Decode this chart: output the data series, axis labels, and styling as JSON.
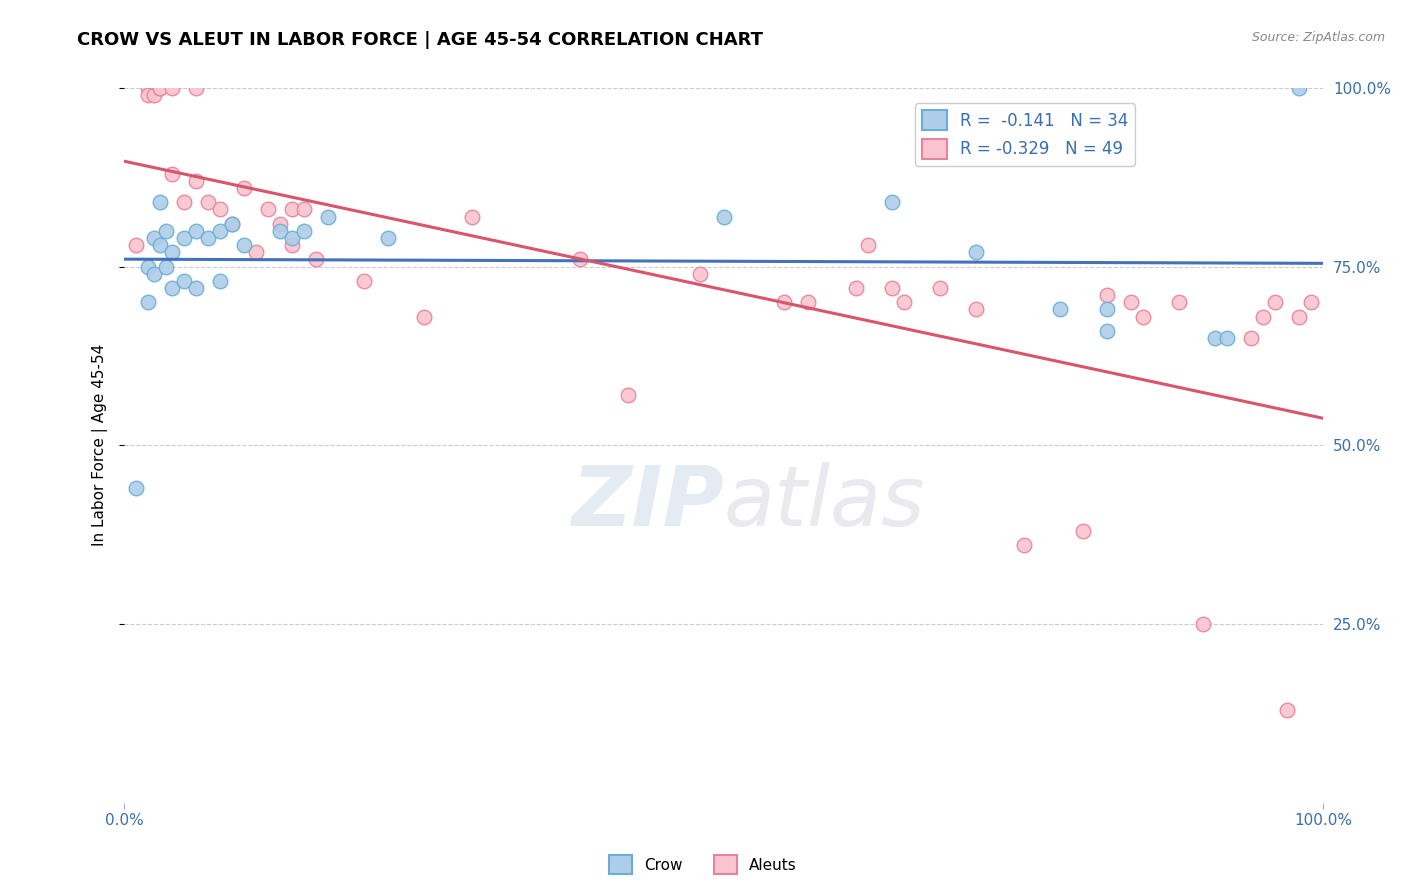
{
  "title": "CROW VS ALEUT IN LABOR FORCE | AGE 45-54 CORRELATION CHART",
  "source_text": "Source: ZipAtlas.com",
  "ylabel": "In Labor Force | Age 45-54",
  "xlim": [
    0,
    1.0
  ],
  "ylim": [
    0,
    1.0
  ],
  "legend_r_crow": "-0.141",
  "legend_n_crow": "34",
  "legend_r_aleut": "-0.329",
  "legend_n_aleut": "49",
  "crow_color": "#aecde8",
  "aleut_color": "#f9c4d0",
  "crow_edge_color": "#6aaed6",
  "aleut_edge_color": "#e8839a",
  "crow_line_color": "#4472b8",
  "aleut_line_color": "#d9556b",
  "background_color": "#ffffff",
  "grid_color": "#cccccc",
  "crow_x": [
    0.01,
    0.02,
    0.02,
    0.025,
    0.025,
    0.03,
    0.03,
    0.035,
    0.035,
    0.04,
    0.04,
    0.05,
    0.05,
    0.06,
    0.06,
    0.07,
    0.08,
    0.08,
    0.09,
    0.1,
    0.13,
    0.14,
    0.15,
    0.17,
    0.22,
    0.5,
    0.64,
    0.71,
    0.78,
    0.82,
    0.82,
    0.91,
    0.92,
    0.98
  ],
  "crow_y": [
    0.44,
    0.75,
    0.7,
    0.79,
    0.74,
    0.84,
    0.78,
    0.8,
    0.75,
    0.77,
    0.72,
    0.79,
    0.73,
    0.8,
    0.72,
    0.79,
    0.8,
    0.73,
    0.81,
    0.78,
    0.8,
    0.79,
    0.8,
    0.82,
    0.79,
    0.82,
    0.84,
    0.77,
    0.69,
    0.69,
    0.66,
    0.65,
    0.65,
    1.0
  ],
  "aleut_x": [
    0.01,
    0.02,
    0.02,
    0.025,
    0.03,
    0.03,
    0.04,
    0.04,
    0.05,
    0.06,
    0.06,
    0.07,
    0.08,
    0.09,
    0.1,
    0.11,
    0.12,
    0.13,
    0.14,
    0.14,
    0.15,
    0.16,
    0.2,
    0.25,
    0.29,
    0.38,
    0.42,
    0.48,
    0.55,
    0.57,
    0.61,
    0.62,
    0.64,
    0.65,
    0.68,
    0.71,
    0.75,
    0.8,
    0.82,
    0.84,
    0.85,
    0.88,
    0.9,
    0.94,
    0.95,
    0.96,
    0.97,
    0.98,
    0.99
  ],
  "aleut_y": [
    0.78,
    1.0,
    0.99,
    0.99,
    1.0,
    1.0,
    1.0,
    0.88,
    0.84,
    1.0,
    0.87,
    0.84,
    0.83,
    0.81,
    0.86,
    0.77,
    0.83,
    0.81,
    0.83,
    0.78,
    0.83,
    0.76,
    0.73,
    0.68,
    0.82,
    0.76,
    0.57,
    0.74,
    0.7,
    0.7,
    0.72,
    0.78,
    0.72,
    0.7,
    0.72,
    0.69,
    0.36,
    0.38,
    0.71,
    0.7,
    0.68,
    0.7,
    0.25,
    0.65,
    0.68,
    0.7,
    0.13,
    0.68,
    0.7
  ],
  "watermark_text": "ZIPatlas",
  "title_fontsize": 13,
  "axis_label_fontsize": 11,
  "tick_fontsize": 11,
  "legend_fontsize": 12
}
